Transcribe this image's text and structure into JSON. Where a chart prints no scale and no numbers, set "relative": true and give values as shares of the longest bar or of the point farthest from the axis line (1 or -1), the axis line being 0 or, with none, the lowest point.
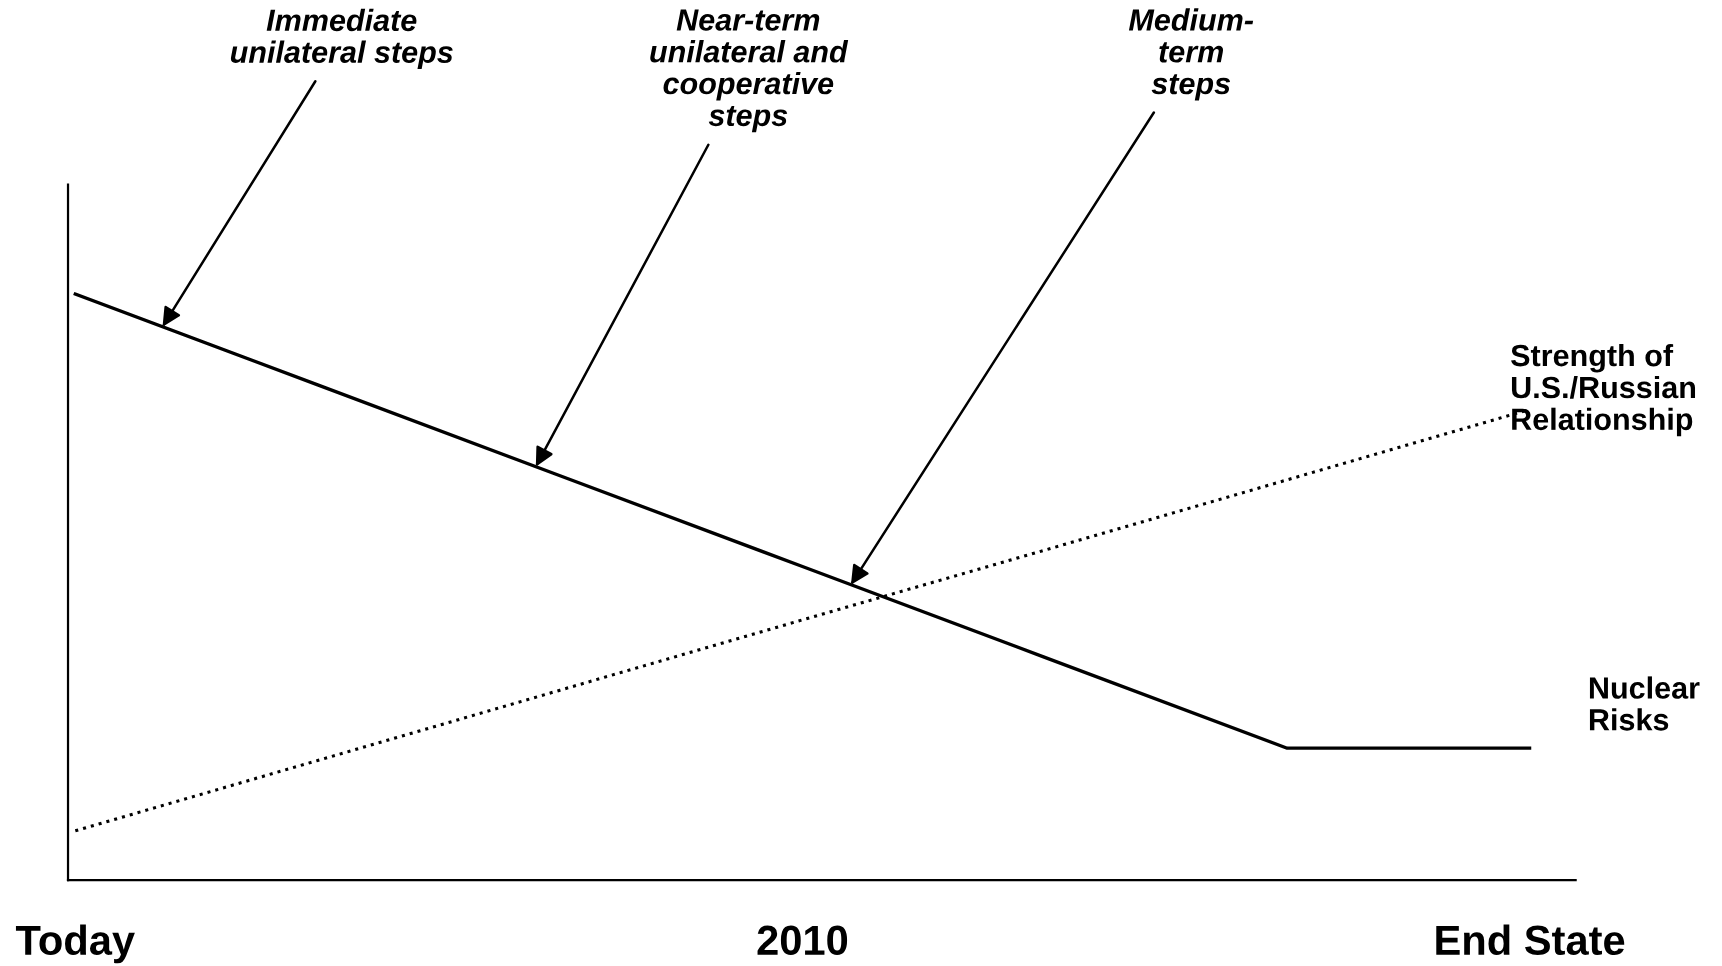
{
  "chart_data": {
    "type": "line",
    "relative": true,
    "categories": [
      "Today",
      null,
      null,
      "2010",
      null,
      null,
      "End State"
    ],
    "series": [
      {
        "name": "Nuclear\nRisks",
        "color": "#000000",
        "line_style": "solid",
        "values": [
          1,
          0.845,
          0.69,
          0.535,
          0.38,
          0.225,
          0.225
        ]
      },
      {
        "name": "Strength of\nU.S./Russian\nRelationship",
        "color": "#000000",
        "line_style": "dotted",
        "values": [
          0.084,
          0.204,
          0.324,
          0.444,
          0.563,
          0.683,
          0.803
        ]
      }
    ],
    "annotations": [
      "Immediate\nunilateral steps",
      "Near-term\nunilateral and\ncooperative\nsteps",
      "Medium-\nterm\nsteps"
    ],
    "grid": false,
    "legend": false
  }
}
